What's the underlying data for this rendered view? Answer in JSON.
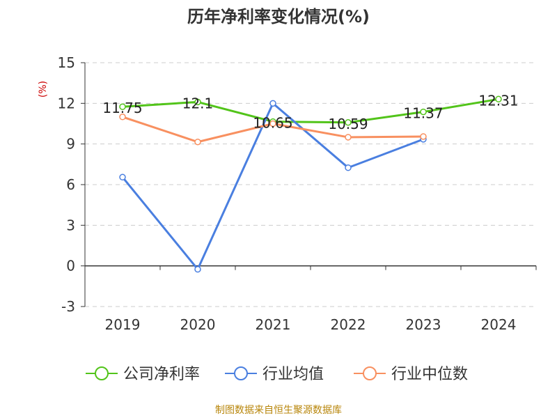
{
  "chart_data": {
    "type": "line",
    "title": "历年净利率变化情况(%)",
    "ylabel": "(%)",
    "xlabel": "",
    "categories": [
      "2019",
      "2020",
      "2021",
      "2022",
      "2023",
      "2024"
    ],
    "yticks": [
      "15",
      "12",
      "9",
      "6",
      "3",
      "0",
      "-3"
    ],
    "ylim": [
      -3,
      15
    ],
    "grid": true,
    "legend_position": "bottom",
    "series": [
      {
        "name": "公司净利率",
        "color": "#52c41a",
        "values": [
          11.75,
          12.1,
          10.65,
          10.59,
          11.37,
          12.31
        ],
        "labels": [
          "11.75",
          "12.1",
          "10.65",
          "10.59",
          "11.37",
          "12.31"
        ]
      },
      {
        "name": "行业均值",
        "color": "#4a7fe0",
        "values": [
          6.55,
          -0.25,
          12.0,
          7.25,
          9.35,
          null
        ]
      },
      {
        "name": "行业中位数",
        "color": "#f89060",
        "values": [
          11.0,
          9.15,
          10.5,
          9.5,
          9.55,
          null
        ]
      }
    ]
  },
  "footer": {
    "source": "制图数据来自恒生聚源数据库"
  }
}
